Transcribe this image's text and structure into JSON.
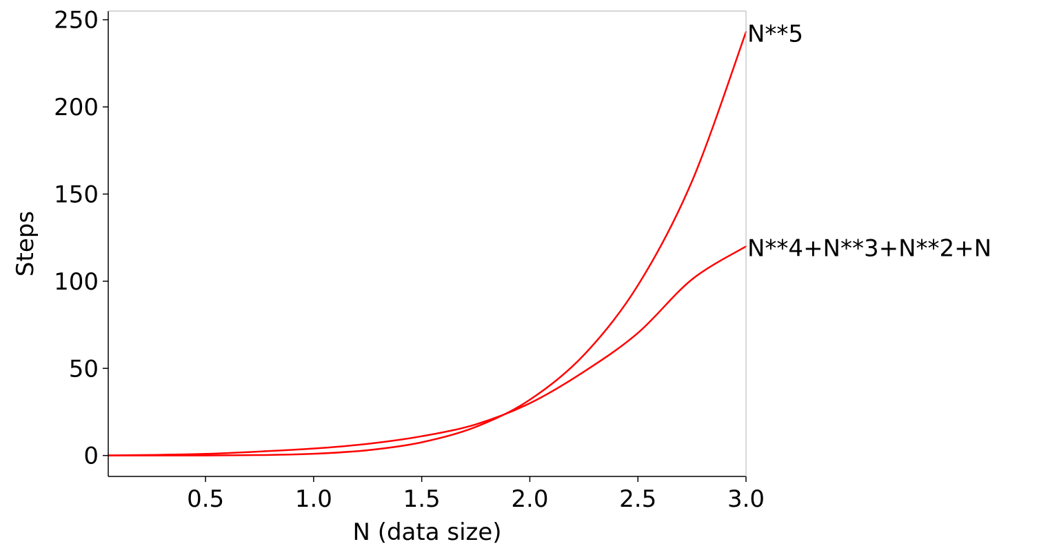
{
  "chart_data": {
    "type": "line",
    "title": "",
    "xlabel": "N (data size)",
    "ylabel": "Steps",
    "xlim": [
      0.05,
      3.0
    ],
    "ylim": [
      -12,
      255
    ],
    "grid": false,
    "x_ticks": [
      0.5,
      1.0,
      1.5,
      2.0,
      2.5,
      3.0
    ],
    "x_tick_labels": [
      "0.5",
      "1.0",
      "1.5",
      "2.0",
      "2.5",
      "3.0"
    ],
    "y_ticks": [
      0,
      50,
      100,
      150,
      200,
      250
    ],
    "y_tick_labels": [
      "0",
      "50",
      "100",
      "150",
      "200",
      "250"
    ],
    "x": [
      0.05,
      0.25,
      0.5,
      0.75,
      1.0,
      1.25,
      1.5,
      1.75,
      2.0,
      2.25,
      2.5,
      2.75,
      3.0
    ],
    "series": [
      {
        "name": "N**5",
        "color": "#ff0000",
        "values": [
          0.0,
          0.001,
          0.03,
          0.24,
          1.0,
          3.05,
          7.59,
          16.41,
          32.0,
          57.67,
          97.66,
          157.28,
          243.0
        ]
      },
      {
        "name": "N**4+N**3+N**2+N",
        "color": "#ff0000",
        "values": [
          0.05,
          0.33,
          0.94,
          2.29,
          4.0,
          6.7,
          11.06,
          17.86,
          30.0,
          48.07,
          70.31,
          101.03,
          120.0
        ]
      }
    ],
    "annotations": [
      {
        "text": "N**5",
        "x": 3.0,
        "y": 243.0
      },
      {
        "text": "N**4+N**3+N**2+N",
        "x": 3.0,
        "y": 120.0
      }
    ]
  }
}
